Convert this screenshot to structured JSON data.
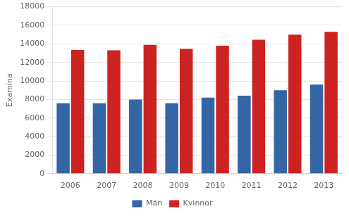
{
  "chart_data": {
    "type": "bar",
    "categories": [
      "2006",
      "2007",
      "2008",
      "2009",
      "2010",
      "2011",
      "2012",
      "2013"
    ],
    "series": [
      {
        "name": "Män",
        "color": "#3465A4",
        "values": [
          7600,
          7600,
          8000,
          7600,
          8200,
          8400,
          9000,
          9600
        ]
      },
      {
        "name": "Kvinnor",
        "color": "#CC2222",
        "values": [
          13350,
          13300,
          13900,
          13450,
          13800,
          14450,
          15000,
          15300
        ]
      }
    ],
    "ylabel": "Examina",
    "ylim": [
      0,
      18000
    ],
    "yticks": [
      0,
      2000,
      4000,
      6000,
      8000,
      10000,
      12000,
      14000,
      16000,
      18000
    ],
    "grid": true,
    "legend": "bottom"
  }
}
